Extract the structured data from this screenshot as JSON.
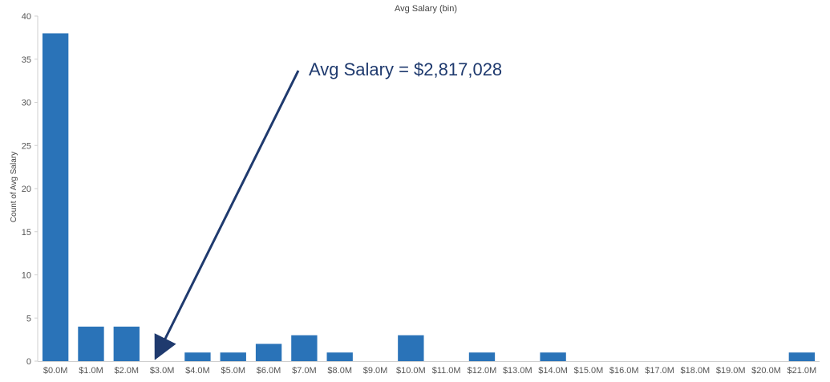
{
  "chart_data": {
    "type": "bar",
    "title": "Avg Salary (bin)",
    "xlabel": "",
    "ylabel": "Count of Avg Salary",
    "categories": [
      "$0.0M",
      "$1.0M",
      "$2.0M",
      "$3.0M",
      "$4.0M",
      "$5.0M",
      "$6.0M",
      "$7.0M",
      "$8.0M",
      "$9.0M",
      "$10.0M",
      "$11.0M",
      "$12.0M",
      "$13.0M",
      "$14.0M",
      "$15.0M",
      "$16.0M",
      "$17.0M",
      "$18.0M",
      "$19.0M",
      "$20.0M",
      "$21.0M"
    ],
    "values": [
      38,
      4,
      4,
      0,
      1,
      1,
      2,
      3,
      1,
      0,
      3,
      0,
      1,
      0,
      1,
      0,
      0,
      0,
      0,
      0,
      0,
      1
    ],
    "ylim": [
      0,
      40
    ],
    "yticks": [
      0,
      5,
      10,
      15,
      20,
      25,
      30,
      35,
      40
    ],
    "grid": false,
    "legend": "none",
    "bar_color": "#2a73b8",
    "annotation": {
      "text": "Avg Salary = $2,817,028",
      "color": "#1f3a6e",
      "arrow_target_category": "$3.0M"
    }
  }
}
